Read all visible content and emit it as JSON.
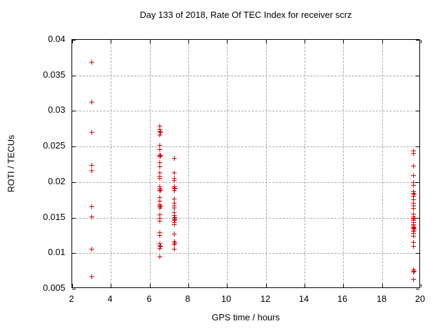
{
  "chart_data": {
    "type": "scatter",
    "title": "Day 133 of 2018, Rate Of TEC Index for receiver scrz",
    "xlabel": "GPS time / hours",
    "ylabel": "ROTI / TECUs",
    "xlim": [
      2,
      20
    ],
    "ylim": [
      0.005,
      0.04
    ],
    "grid": true,
    "legend_position": "none",
    "marker": {
      "shape": "plus-cross",
      "color": "#dd0000",
      "size": 7
    },
    "xticks": [
      {
        "v": 2,
        "label": "2"
      },
      {
        "v": 4,
        "label": "4"
      },
      {
        "v": 6,
        "label": "6"
      },
      {
        "v": 8,
        "label": "8"
      },
      {
        "v": 10,
        "label": "10"
      },
      {
        "v": 12,
        "label": "12"
      },
      {
        "v": 14,
        "label": "14"
      },
      {
        "v": 16,
        "label": "16"
      },
      {
        "v": 18,
        "label": "18"
      },
      {
        "v": 20,
        "label": "20"
      }
    ],
    "yticks": [
      {
        "v": 0.005,
        "label": "0.005"
      },
      {
        "v": 0.01,
        "label": "0.01"
      },
      {
        "v": 0.015,
        "label": "0.015"
      },
      {
        "v": 0.02,
        "label": "0.02"
      },
      {
        "v": 0.025,
        "label": "0.025"
      },
      {
        "v": 0.03,
        "label": "0.03"
      },
      {
        "v": 0.035,
        "label": "0.035"
      },
      {
        "v": 0.04,
        "label": "0.04"
      }
    ],
    "series": [
      {
        "name": "ROTI",
        "points": [
          [
            3.0,
            0.0369
          ],
          [
            3.0,
            0.0313
          ],
          [
            3.0,
            0.027
          ],
          [
            3.0,
            0.0224
          ],
          [
            3.0,
            0.0216
          ],
          [
            3.0,
            0.0166
          ],
          [
            3.0,
            0.0152
          ],
          [
            3.0,
            0.0106
          ],
          [
            3.0,
            0.0067
          ],
          [
            6.5,
            0.0279
          ],
          [
            6.5,
            0.0274
          ],
          [
            6.5,
            0.0271
          ],
          [
            6.53,
            0.027
          ],
          [
            6.5,
            0.0267
          ],
          [
            6.5,
            0.0252
          ],
          [
            6.5,
            0.0246
          ],
          [
            6.5,
            0.0239
          ],
          [
            6.53,
            0.0238
          ],
          [
            6.5,
            0.0237
          ],
          [
            6.5,
            0.0228
          ],
          [
            6.5,
            0.0222
          ],
          [
            6.5,
            0.0213
          ],
          [
            6.5,
            0.0209
          ],
          [
            6.5,
            0.0206
          ],
          [
            6.5,
            0.0194
          ],
          [
            6.5,
            0.0191
          ],
          [
            6.53,
            0.0189
          ],
          [
            6.5,
            0.0188
          ],
          [
            6.5,
            0.0179
          ],
          [
            6.5,
            0.0174
          ],
          [
            6.5,
            0.0169
          ],
          [
            6.5,
            0.0167
          ],
          [
            6.53,
            0.0166
          ],
          [
            6.5,
            0.0164
          ],
          [
            6.5,
            0.0154
          ],
          [
            6.5,
            0.015
          ],
          [
            6.5,
            0.0146
          ],
          [
            6.5,
            0.0129
          ],
          [
            6.5,
            0.0125
          ],
          [
            6.5,
            0.0114
          ],
          [
            6.5,
            0.0111
          ],
          [
            6.53,
            0.011
          ],
          [
            6.5,
            0.0107
          ],
          [
            6.5,
            0.0095
          ],
          [
            7.25,
            0.0234
          ],
          [
            7.25,
            0.0213
          ],
          [
            7.25,
            0.0206
          ],
          [
            7.25,
            0.0203
          ],
          [
            7.25,
            0.0194
          ],
          [
            7.25,
            0.0192
          ],
          [
            7.28,
            0.0191
          ],
          [
            7.25,
            0.0188
          ],
          [
            7.25,
            0.0177
          ],
          [
            7.25,
            0.0171
          ],
          [
            7.25,
            0.0167
          ],
          [
            7.25,
            0.0164
          ],
          [
            7.25,
            0.0157
          ],
          [
            7.25,
            0.0153
          ],
          [
            7.28,
            0.0151
          ],
          [
            7.25,
            0.015
          ],
          [
            7.28,
            0.0148
          ],
          [
            7.25,
            0.0147
          ],
          [
            7.25,
            0.0144
          ],
          [
            7.25,
            0.0141
          ],
          [
            7.25,
            0.0127
          ],
          [
            7.25,
            0.0117
          ],
          [
            7.28,
            0.0115
          ],
          [
            7.25,
            0.0113
          ],
          [
            7.25,
            0.0106
          ],
          [
            19.6,
            0.0244
          ],
          [
            19.6,
            0.024
          ],
          [
            19.6,
            0.0223
          ],
          [
            19.6,
            0.021
          ],
          [
            19.6,
            0.02
          ],
          [
            19.6,
            0.0196
          ],
          [
            19.6,
            0.0187
          ],
          [
            19.6,
            0.0184
          ],
          [
            19.63,
            0.0183
          ],
          [
            19.6,
            0.0181
          ],
          [
            19.6,
            0.0176
          ],
          [
            19.6,
            0.0171
          ],
          [
            19.6,
            0.0167
          ],
          [
            19.6,
            0.0163
          ],
          [
            19.6,
            0.0155
          ],
          [
            19.6,
            0.0152
          ],
          [
            19.63,
            0.015
          ],
          [
            19.6,
            0.0149
          ],
          [
            19.6,
            0.0147
          ],
          [
            19.6,
            0.0144
          ],
          [
            19.6,
            0.0141
          ],
          [
            19.6,
            0.0139
          ],
          [
            19.6,
            0.0137
          ],
          [
            19.63,
            0.0136
          ],
          [
            19.6,
            0.0135
          ],
          [
            19.63,
            0.0133
          ],
          [
            19.6,
            0.0131
          ],
          [
            19.6,
            0.0128
          ],
          [
            19.6,
            0.0124
          ],
          [
            19.6,
            0.0116
          ],
          [
            19.6,
            0.011
          ],
          [
            19.6,
            0.0077
          ],
          [
            19.63,
            0.0075
          ],
          [
            19.6,
            0.0074
          ],
          [
            19.6,
            0.0064
          ]
        ]
      }
    ]
  }
}
